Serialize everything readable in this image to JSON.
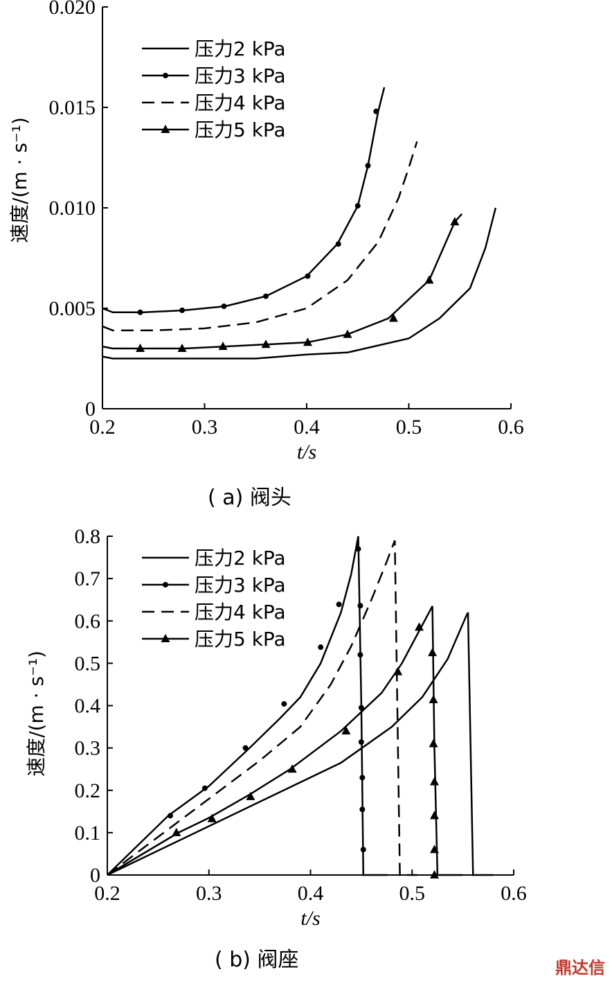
{
  "watermark": "鼎达信",
  "chart_data": [
    {
      "type": "line",
      "caption": "( a)  阀头",
      "xlabel": "t/s",
      "ylabel": "速度/(m · s⁻¹)",
      "xlim": [
        0.2,
        0.6
      ],
      "ylim": [
        0,
        0.02
      ],
      "xticks": [
        "0.2",
        "0.3",
        "0.4",
        "0.5",
        "0.6"
      ],
      "yticks": [
        "0",
        "0.005",
        "0.010",
        "0.015",
        "0.020"
      ],
      "legend": "top-left",
      "series": [
        {
          "name": "压力2 kPa",
          "style": "solid",
          "x": [
            0.2,
            0.21,
            0.25,
            0.3,
            0.35,
            0.4,
            0.44,
            0.5,
            0.53,
            0.56,
            0.575,
            0.585
          ],
          "y": [
            0.0026,
            0.0025,
            0.0025,
            0.0025,
            0.0025,
            0.0027,
            0.0028,
            0.0035,
            0.0045,
            0.006,
            0.008,
            0.01
          ]
        },
        {
          "name": "压力3 kPa",
          "style": "dots",
          "x": [
            0.2,
            0.21,
            0.24,
            0.28,
            0.32,
            0.36,
            0.4,
            0.43,
            0.45,
            0.46,
            0.47,
            0.476
          ],
          "y": [
            0.005,
            0.0048,
            0.0048,
            0.0049,
            0.0051,
            0.0056,
            0.0066,
            0.0082,
            0.0101,
            0.0121,
            0.0148,
            0.016
          ]
        },
        {
          "name": "压力4 kPa",
          "style": "dashed",
          "x": [
            0.2,
            0.21,
            0.25,
            0.3,
            0.35,
            0.4,
            0.44,
            0.47,
            0.49,
            0.5,
            0.508
          ],
          "y": [
            0.0041,
            0.0039,
            0.0039,
            0.004,
            0.0043,
            0.005,
            0.0064,
            0.0083,
            0.0105,
            0.012,
            0.0133
          ]
        },
        {
          "name": "压力5 kPa",
          "style": "triangles",
          "x": [
            0.2,
            0.21,
            0.24,
            0.28,
            0.32,
            0.36,
            0.4,
            0.44,
            0.48,
            0.52,
            0.545,
            0.552
          ],
          "y": [
            0.0031,
            0.003,
            0.003,
            0.003,
            0.0031,
            0.0032,
            0.0033,
            0.0037,
            0.0045,
            0.0064,
            0.0093,
            0.0097
          ]
        }
      ],
      "markers": {
        "压力3 kPa": {
          "x": [
            0.237,
            0.278,
            0.319,
            0.36,
            0.401,
            0.431,
            0.45,
            0.46,
            0.468
          ],
          "y": [
            0.0048,
            0.0049,
            0.0051,
            0.0056,
            0.0066,
            0.0082,
            0.0101,
            0.0121,
            0.0148
          ]
        },
        "压力5 kPa": {
          "x": [
            0.237,
            0.278,
            0.318,
            0.36,
            0.401,
            0.44,
            0.485,
            0.52,
            0.545
          ],
          "y": [
            0.003,
            0.003,
            0.0031,
            0.0032,
            0.0033,
            0.0037,
            0.0045,
            0.0064,
            0.0093
          ]
        }
      }
    },
    {
      "type": "line",
      "caption": "( b) 阀座",
      "xlabel": "t/s",
      "ylabel": "速度/(m · s⁻¹)",
      "xlim": [
        0.2,
        0.6
      ],
      "ylim": [
        0,
        0.8
      ],
      "xticks": [
        "0.2",
        "0.3",
        "0.4",
        "0.5",
        "0.6"
      ],
      "yticks": [
        "0",
        "0.1",
        "0.2",
        "0.3",
        "0.4",
        "0.5",
        "0.6",
        "0.7",
        "0.8"
      ],
      "legend": "top-left",
      "series": [
        {
          "name": "压力2 kPa",
          "style": "solid",
          "x": [
            0.2,
            0.43,
            0.48,
            0.51,
            0.535,
            0.553,
            0.555,
            0.56,
            0.58
          ],
          "y": [
            0,
            0.265,
            0.35,
            0.42,
            0.51,
            0.61,
            0.62,
            0.0,
            0.0
          ]
        },
        {
          "name": "压力3 kPa",
          "style": "dots",
          "x": [
            0.2,
            0.26,
            0.3,
            0.34,
            0.37,
            0.39,
            0.41,
            0.43,
            0.44,
            0.447,
            0.45,
            0.452,
            0.476
          ],
          "y": [
            0,
            0.14,
            0.21,
            0.3,
            0.37,
            0.42,
            0.5,
            0.62,
            0.71,
            0.8,
            0.4,
            0.0,
            0.0
          ]
        },
        {
          "name": "压力4 kPa",
          "style": "dashed",
          "x": [
            0.2,
            0.3,
            0.35,
            0.39,
            0.42,
            0.44,
            0.46,
            0.475,
            0.483,
            0.488,
            0.505
          ],
          "y": [
            0,
            0.18,
            0.27,
            0.35,
            0.45,
            0.54,
            0.65,
            0.74,
            0.79,
            0.0,
            0.0
          ]
        },
        {
          "name": "压力5 kPa",
          "style": "triangles",
          "x": [
            0.2,
            0.27,
            0.3,
            0.34,
            0.38,
            0.43,
            0.47,
            0.49,
            0.51,
            0.52,
            0.522,
            0.525,
            0.55
          ],
          "y": [
            0,
            0.1,
            0.135,
            0.19,
            0.25,
            0.34,
            0.43,
            0.5,
            0.59,
            0.635,
            0.3,
            0.0,
            0.0
          ]
        }
      ],
      "markers": {
        "压力3 kPa": {
          "x": [
            0.262,
            0.296,
            0.336,
            0.374,
            0.41,
            0.428,
            0.447,
            0.449,
            0.449,
            0.45,
            0.45,
            0.451,
            0.451,
            0.452
          ],
          "y": [
            0.14,
            0.205,
            0.3,
            0.404,
            0.538,
            0.639,
            0.77,
            0.636,
            0.52,
            0.395,
            0.314,
            0.23,
            0.155,
            0.06
          ]
        },
        "压力5 kPa": {
          "x": [
            0.268,
            0.303,
            0.341,
            0.382,
            0.435,
            0.486,
            0.507,
            0.52,
            0.521,
            0.521,
            0.522,
            0.522,
            0.522,
            0.522
          ],
          "y": [
            0.1,
            0.133,
            0.185,
            0.25,
            0.34,
            0.48,
            0.585,
            0.525,
            0.414,
            0.31,
            0.22,
            0.14,
            0.06,
            0.0
          ]
        }
      }
    }
  ]
}
